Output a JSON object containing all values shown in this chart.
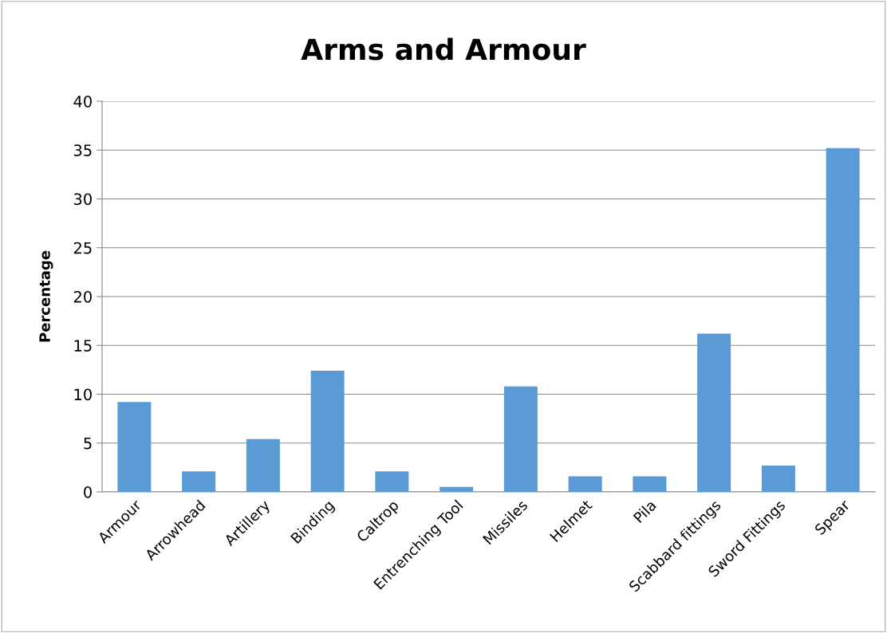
{
  "chart_data": {
    "type": "bar",
    "title": "Arms and Armour",
    "ylabel": "Percentage",
    "categories": [
      "Armour",
      "Arrowhead",
      "Artillery",
      "Binding",
      "Caltrop",
      "Entrenching Tool",
      "Missiles",
      "Helmet",
      "Pila",
      "Scabbard fittings",
      "Sword Fittings",
      "Spear"
    ],
    "values": [
      9.2,
      2.1,
      5.4,
      12.4,
      2.1,
      0.5,
      10.8,
      1.6,
      1.6,
      16.2,
      2.7,
      35.2
    ],
    "color": "#5b9bd5",
    "ylim": [
      0,
      40
    ],
    "yticks": [
      0,
      5,
      10,
      15,
      20,
      25,
      30,
      35,
      40
    ],
    "grid": "y"
  }
}
